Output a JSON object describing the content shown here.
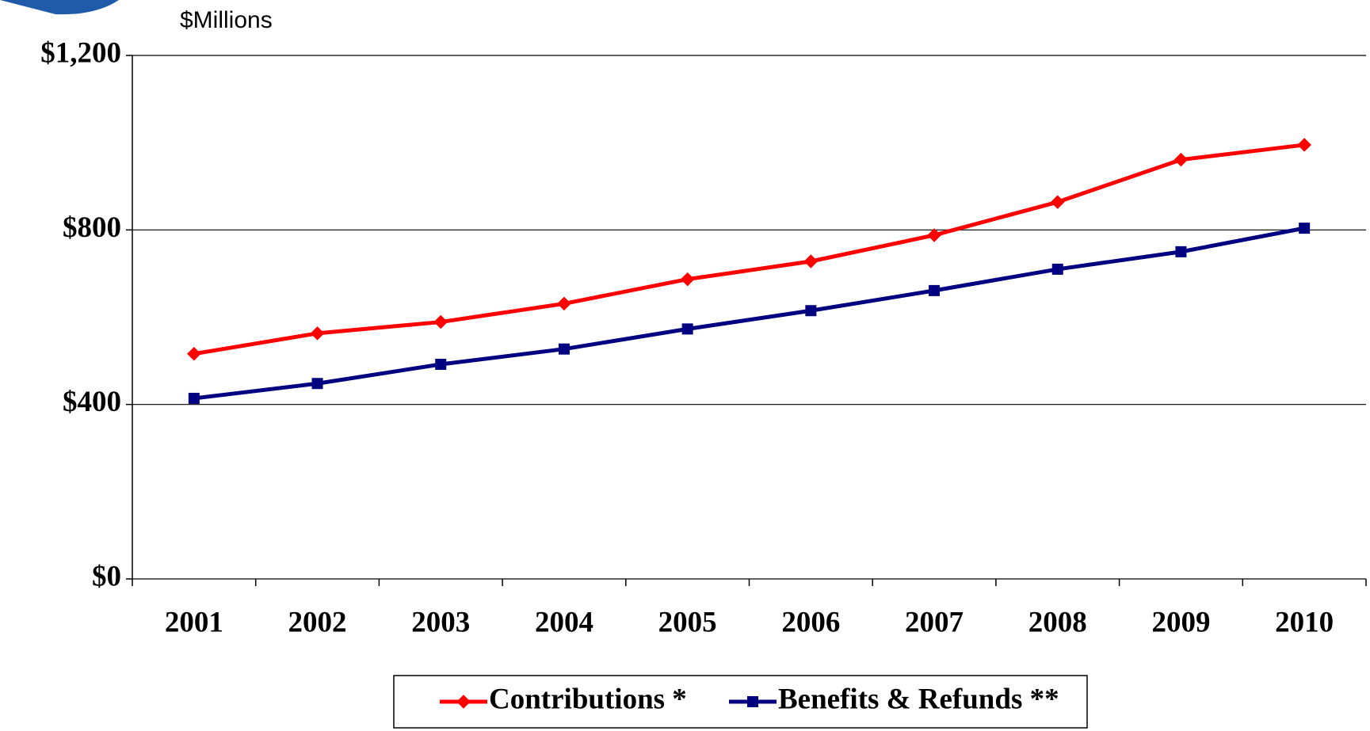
{
  "chart_data": {
    "type": "line",
    "subtitle": "$Millions",
    "categories": [
      "2001",
      "2002",
      "2003",
      "2004",
      "2005",
      "2006",
      "2007",
      "2008",
      "2009",
      "2010"
    ],
    "series": [
      {
        "name": "Contributions *",
        "color": "#ff0000",
        "marker": "diamond",
        "values": [
          516,
          563,
          589,
          631,
          687,
          728,
          788,
          864,
          961,
          995
        ]
      },
      {
        "name": "Benefits & Refunds **",
        "color": "#000080",
        "marker": "square",
        "values": [
          414,
          448,
          492,
          527,
          573,
          615,
          661,
          710,
          750,
          804
        ]
      }
    ],
    "ylim": [
      0,
      1200
    ],
    "yticks": [
      {
        "value": 0,
        "label": "$0"
      },
      {
        "value": 400,
        "label": "$400"
      },
      {
        "value": 800,
        "label": "$800"
      },
      {
        "value": 1200,
        "label": "$1,200"
      }
    ],
    "grid": true,
    "legend": "bottom"
  }
}
